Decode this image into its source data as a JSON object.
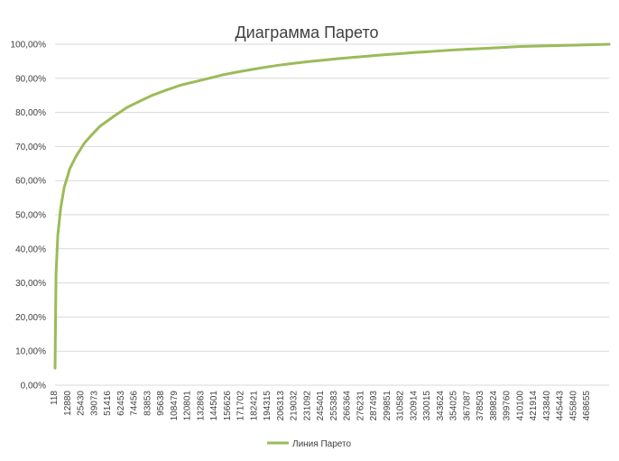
{
  "chart_data": {
    "type": "line",
    "title": "Диаграмма Парето",
    "xlabel": "",
    "ylabel": "",
    "y_tick_labels": [
      "0,00%",
      "10,00%",
      "20,00%",
      "30,00%",
      "40,00%",
      "50,00%",
      "60,00%",
      "70,00%",
      "80,00%",
      "90,00%",
      "100,00%"
    ],
    "ylim": [
      0,
      1
    ],
    "x_tick_labels": [
      "118",
      "12880",
      "25430",
      "39073",
      "51416",
      "62453",
      "74456",
      "83853",
      "95638",
      "108479",
      "120801",
      "132863",
      "144501",
      "156626",
      "171702",
      "182421",
      "194315",
      "206313",
      "219032",
      "231092",
      "245401",
      "255383",
      "266364",
      "276231",
      "287493",
      "299851",
      "310582",
      "320914",
      "330015",
      "343624",
      "354025",
      "367087",
      "378503",
      "389824",
      "399760",
      "410100",
      "421914",
      "433840",
      "445443",
      "455840",
      "468655"
    ],
    "xlim": [
      118,
      478000
    ],
    "grid": true,
    "legend_position": "bottom",
    "series": [
      {
        "name": "Линия Парето",
        "color": "#9bbb59",
        "x": [
          118,
          1000,
          2500,
          5000,
          8000,
          12880,
          18000,
          25430,
          32000,
          39073,
          51416,
          62453,
          74456,
          83853,
          95638,
          108479,
          120801,
          132863,
          144501,
          156626,
          171702,
          182421,
          194315,
          206313,
          219032,
          231092,
          245401,
          255383,
          266364,
          276231,
          287493,
          299851,
          310582,
          320914,
          330015,
          343624,
          354025,
          367087,
          378503,
          389824,
          399760,
          410100,
          421914,
          433840,
          445443,
          455840,
          468655,
          478000
        ],
        "y": [
          0.05,
          0.33,
          0.44,
          0.52,
          0.58,
          0.635,
          0.67,
          0.71,
          0.735,
          0.76,
          0.79,
          0.815,
          0.835,
          0.85,
          0.865,
          0.88,
          0.89,
          0.9,
          0.91,
          0.918,
          0.927,
          0.933,
          0.939,
          0.944,
          0.949,
          0.953,
          0.958,
          0.961,
          0.964,
          0.967,
          0.97,
          0.973,
          0.976,
          0.978,
          0.98,
          0.983,
          0.985,
          0.987,
          0.989,
          0.991,
          0.993,
          0.994,
          0.995,
          0.996,
          0.997,
          0.998,
          0.999,
          1.0
        ]
      }
    ]
  }
}
